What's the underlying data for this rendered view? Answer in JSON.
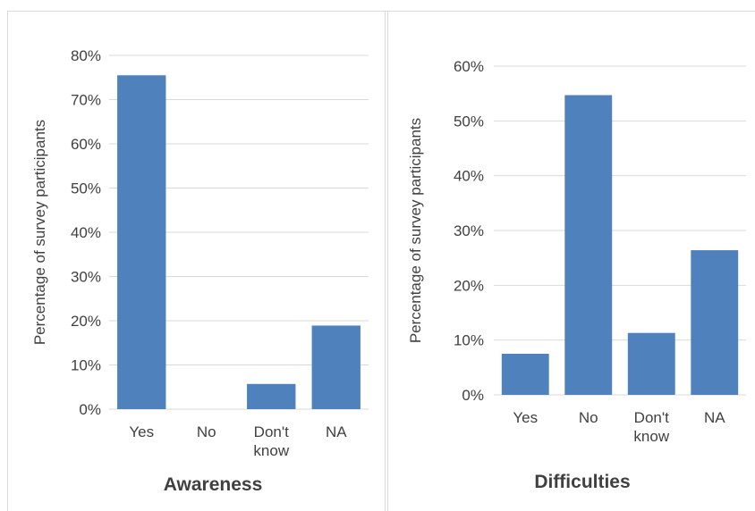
{
  "colors": {
    "bar": "#4f81bd",
    "grid": "#d9d9d9",
    "text": "#404040",
    "title": "#404040"
  },
  "chart_data": [
    {
      "type": "bar",
      "title": "Awareness",
      "xlabel": "",
      "ylabel": "Percentage of survey participants",
      "categories": [
        "Yes",
        "No",
        "Don't know",
        "NA"
      ],
      "values": [
        75.5,
        0,
        5.7,
        18.9
      ],
      "ylim": [
        0,
        80
      ],
      "ytick_step": 10,
      "ytick_labels": [
        "0%",
        "10%",
        "20%",
        "30%",
        "40%",
        "50%",
        "60%",
        "70%",
        "80%"
      ],
      "grid": true,
      "legend": "none"
    },
    {
      "type": "bar",
      "title": "Difficulties",
      "xlabel": "",
      "ylabel": "Percentage of survey participants",
      "categories": [
        "Yes",
        "No",
        "Don't know",
        "NA"
      ],
      "values": [
        7.5,
        54.7,
        11.3,
        26.4
      ],
      "ylim": [
        0,
        60
      ],
      "ytick_step": 10,
      "ytick_labels": [
        "0%",
        "10%",
        "20%",
        "30%",
        "40%",
        "50%",
        "60%"
      ],
      "grid": true,
      "legend": "none"
    }
  ]
}
